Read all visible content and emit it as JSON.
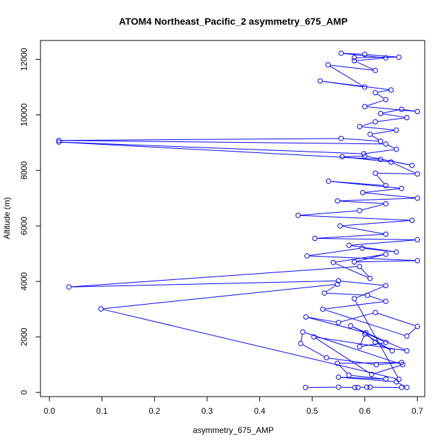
{
  "chart_data": {
    "type": "scatter",
    "title": "ATOM4 Northeast_Pacific_2 asymmetry_675_AMP",
    "xlabel": "asymmetry_675_AMP",
    "ylabel": "Altitude (m)",
    "xlim": [
      -0.017,
      0.714
    ],
    "ylim": [
      -150,
      12680
    ],
    "xticks": [
      0.0,
      0.1,
      0.2,
      0.3,
      0.4,
      0.5,
      0.6,
      0.7
    ],
    "xtick_labels": [
      "0.0",
      "0.1",
      "0.2",
      "0.3",
      "0.4",
      "0.5",
      "0.6",
      "0.7"
    ],
    "yticks": [
      0,
      2000,
      4000,
      6000,
      8000,
      10000,
      12000
    ],
    "ytick_labels": [
      "0",
      "2000",
      "4000",
      "6000",
      "8000",
      "10000",
      "12000"
    ],
    "grid": false,
    "series_color": "#0000ff",
    "series": [
      {
        "style": "points-and-lines",
        "points": [
          [
            0.487,
            180
          ],
          [
            0.55,
            190
          ],
          [
            0.581,
            180
          ],
          [
            0.587,
            180
          ],
          [
            0.604,
            190
          ],
          [
            0.61,
            190
          ],
          [
            0.67,
            180
          ],
          [
            0.68,
            180
          ],
          [
            0.66,
            380
          ],
          [
            0.55,
            550
          ],
          [
            0.64,
            480
          ],
          [
            0.57,
            620
          ],
          [
            0.548,
            1050
          ],
          [
            0.67,
            1080
          ],
          [
            0.622,
            1000
          ],
          [
            0.527,
            1250
          ],
          [
            0.478,
            1760
          ],
          [
            0.482,
            2180
          ],
          [
            0.672,
            1000
          ],
          [
            0.613,
            650
          ],
          [
            0.503,
            2000
          ],
          [
            0.68,
            1500
          ],
          [
            0.573,
            2400
          ],
          [
            0.64,
            1800
          ],
          [
            0.59,
            1650
          ],
          [
            0.6,
            2100
          ],
          [
            0.652,
            1500
          ],
          [
            0.62,
            1800
          ],
          [
            0.602,
            2150
          ],
          [
            0.488,
            2720
          ],
          [
            0.55,
            2520
          ],
          [
            0.62,
            2880
          ],
          [
            0.7,
            2380
          ],
          [
            0.68,
            2030
          ],
          [
            0.52,
            3000
          ],
          [
            0.64,
            3280
          ],
          [
            0.605,
            3500
          ],
          [
            0.523,
            3580
          ],
          [
            0.548,
            3900
          ],
          [
            0.098,
            3010
          ],
          [
            0.665,
            470
          ],
          [
            0.58,
            3380
          ],
          [
            0.64,
            3850
          ],
          [
            0.55,
            4020
          ],
          [
            0.037,
            3800
          ],
          [
            0.59,
            4540
          ],
          [
            0.61,
            4110
          ],
          [
            0.54,
            4680
          ],
          [
            0.64,
            4980
          ],
          [
            0.58,
            4700
          ],
          [
            0.7,
            4750
          ],
          [
            0.49,
            4920
          ],
          [
            0.595,
            5200
          ],
          [
            0.66,
            5060
          ],
          [
            0.57,
            5300
          ],
          [
            0.7,
            5500
          ],
          [
            0.505,
            5550
          ],
          [
            0.64,
            5700
          ],
          [
            0.553,
            6000
          ],
          [
            0.69,
            6200
          ],
          [
            0.473,
            6380
          ],
          [
            0.59,
            6550
          ],
          [
            0.64,
            6800
          ],
          [
            0.548,
            6900
          ],
          [
            0.7,
            7000
          ],
          [
            0.596,
            7200
          ],
          [
            0.67,
            7350
          ],
          [
            0.531,
            7610
          ],
          [
            0.64,
            7450
          ],
          [
            0.62,
            7900
          ],
          [
            0.7,
            7870
          ],
          [
            0.65,
            8300
          ],
          [
            0.557,
            8490
          ],
          [
            0.6,
            8520
          ],
          [
            0.69,
            8180
          ],
          [
            0.63,
            8400
          ],
          [
            0.018,
            9020
          ],
          [
            0.598,
            8600
          ],
          [
            0.66,
            8760
          ],
          [
            0.64,
            8950
          ],
          [
            0.018,
            9080
          ],
          [
            0.555,
            9150
          ],
          [
            0.63,
            9050
          ],
          [
            0.61,
            9300
          ],
          [
            0.66,
            9450
          ],
          [
            0.59,
            9580
          ],
          [
            0.62,
            9750
          ],
          [
            0.68,
            9900
          ],
          [
            0.63,
            10050
          ],
          [
            0.67,
            10200
          ],
          [
            0.7,
            10120
          ],
          [
            0.6,
            10300
          ],
          [
            0.64,
            10550
          ],
          [
            0.62,
            10800
          ],
          [
            0.65,
            10900
          ],
          [
            0.515,
            11220
          ],
          [
            0.6,
            11000
          ],
          [
            0.53,
            11800
          ],
          [
            0.62,
            11600
          ],
          [
            0.58,
            11950
          ],
          [
            0.64,
            12050
          ],
          [
            0.555,
            12220
          ],
          [
            0.6,
            12180
          ],
          [
            0.665,
            12080
          ],
          [
            0.58,
            12060
          ]
        ]
      }
    ]
  }
}
